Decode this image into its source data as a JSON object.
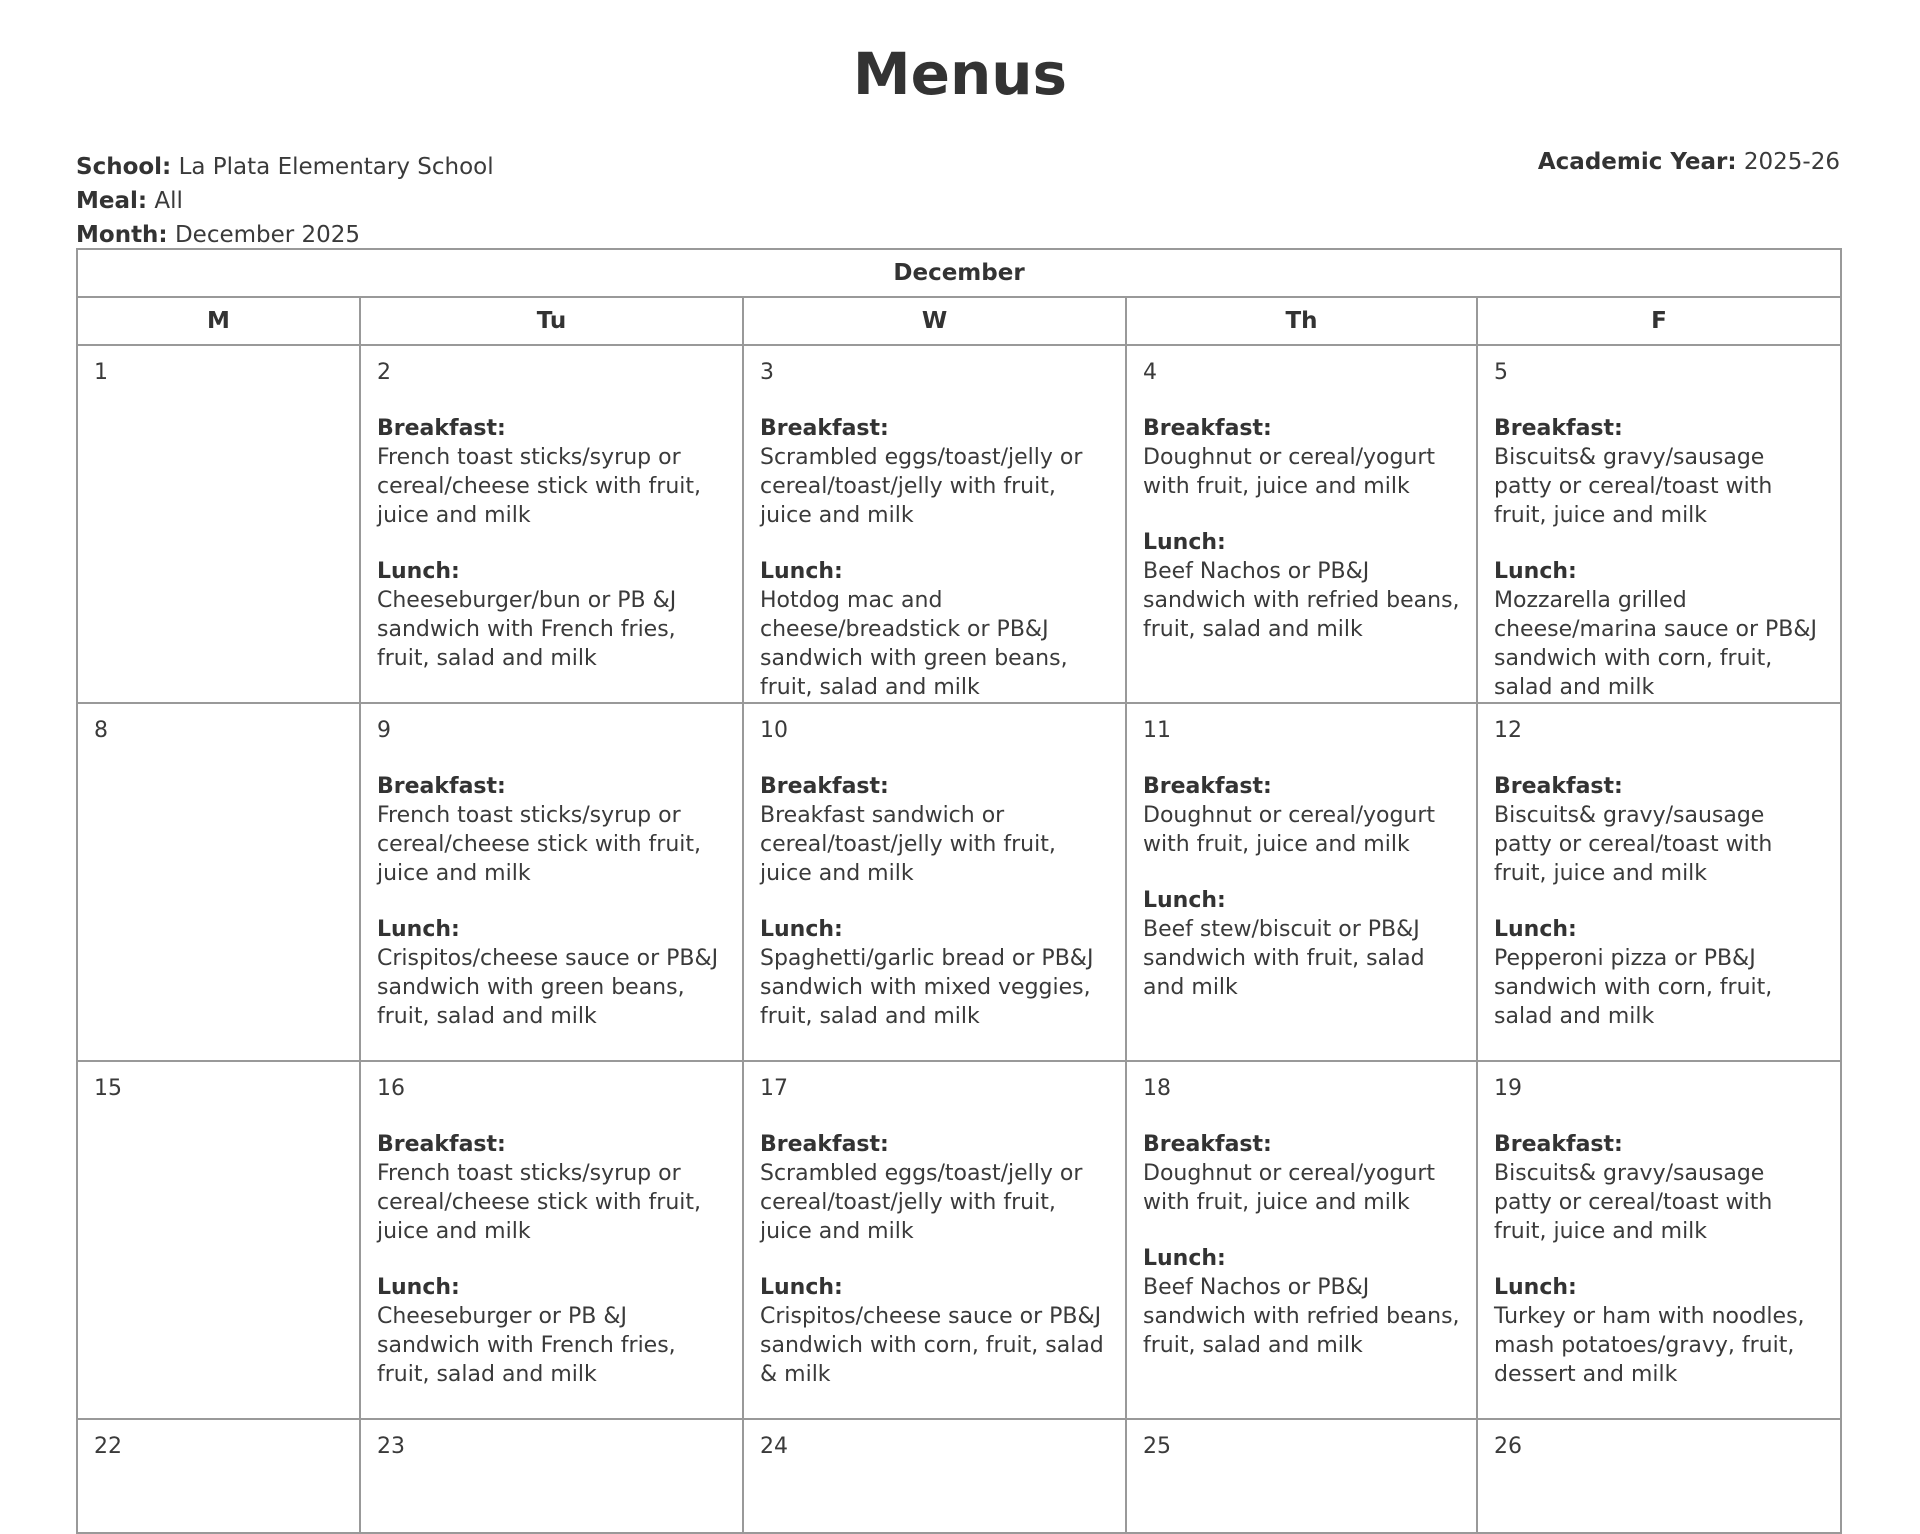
{
  "title": "Menus",
  "school_label": "School:",
  "school": "La Plata Elementary School",
  "meal_label": "Meal:",
  "meal": "All",
  "month_label": "Month:",
  "month": "December 2025",
  "year_label": "Academic Year:",
  "year": "2025-26",
  "table_title": "December",
  "days": [
    "M",
    "Tu",
    "W",
    "Th",
    "F"
  ],
  "breakfast_label": "Breakfast:",
  "lunch_label": "Lunch:",
  "weeks": [
    [
      {
        "date": "1"
      },
      {
        "date": "2",
        "breakfast": "French toast sticks/syrup or cereal/cheese stick with fruit, juice and milk",
        "lunch": "Cheeseburger/bun or PB &J sandwich with French fries, fruit, salad and milk"
      },
      {
        "date": "3",
        "breakfast": "Scrambled eggs/toast/jelly or cereal/toast/jelly with fruit, juice and milk",
        "lunch": "Hotdog mac and cheese/breadstick or PB&J sandwich with green beans, fruit, salad and milk"
      },
      {
        "date": "4",
        "breakfast": "Doughnut or cereal/yogurt with fruit, juice and milk",
        "lunch": "Beef Nachos or PB&J sandwich with refried beans, fruit, salad and milk"
      },
      {
        "date": "5",
        "breakfast": "Biscuits& gravy/sausage patty or cereal/toast with fruit, juice and milk",
        "lunch": "Mozzarella grilled cheese/marina sauce or PB&J sandwich with corn, fruit, salad and milk"
      }
    ],
    [
      {
        "date": "8"
      },
      {
        "date": "9",
        "breakfast": "French toast sticks/syrup or cereal/cheese stick with fruit, juice and milk",
        "lunch": "Crispitos/cheese sauce or PB&J sandwich with green beans, fruit, salad and milk"
      },
      {
        "date": "10",
        "breakfast": "Breakfast sandwich or cereal/toast/jelly with fruit, juice and milk",
        "lunch": "Spaghetti/garlic bread or PB&J sandwich with mixed veggies, fruit, salad and milk"
      },
      {
        "date": "11",
        "breakfast": "Doughnut or cereal/yogurt with fruit, juice and milk",
        "lunch": "Beef stew/biscuit or PB&J sandwich with fruit, salad and milk"
      },
      {
        "date": "12",
        "breakfast": "Biscuits& gravy/sausage patty or cereal/toast with fruit, juice and milk",
        "lunch": "Pepperoni pizza or PB&J sandwich with corn, fruit, salad and milk"
      }
    ],
    [
      {
        "date": "15"
      },
      {
        "date": "16",
        "breakfast": "French toast sticks/syrup or cereal/cheese stick with fruit, juice and milk",
        "lunch": "Cheeseburger or PB &J sandwich with French fries, fruit, salad and milk"
      },
      {
        "date": "17",
        "breakfast": "Scrambled eggs/toast/jelly or cereal/toast/jelly with fruit, juice and milk",
        "lunch": "Crispitos/cheese sauce or PB&J sandwich with corn, fruit, salad & milk"
      },
      {
        "date": "18",
        "breakfast": "Doughnut or cereal/yogurt with fruit, juice and milk",
        "lunch": "Beef Nachos or PB&J sandwich with refried beans, fruit, salad and milk"
      },
      {
        "date": "19",
        "breakfast": "Biscuits& gravy/sausage patty or cereal/toast with fruit, juice and milk",
        "lunch": "Turkey or ham with noodles, mash potatoes/gravy, fruit, dessert and milk"
      }
    ],
    [
      {
        "date": "22"
      },
      {
        "date": "23"
      },
      {
        "date": "24"
      },
      {
        "date": "25"
      },
      {
        "date": "26"
      }
    ]
  ]
}
